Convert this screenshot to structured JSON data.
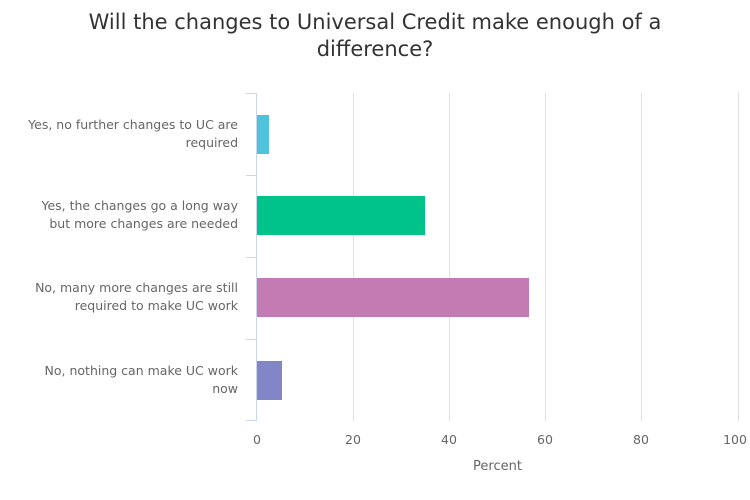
{
  "chart_data": {
    "type": "bar",
    "orientation": "horizontal",
    "title": "Will the changes to Universal Credit make enough of a difference?",
    "title_lines": [
      "Will the changes to Universal Credit make enough of a",
      "difference?"
    ],
    "categories": [
      "Yes, no further changes to UC are required",
      "Yes, the changes go a long way but more changes are needed",
      "No, many more changes are still required to make UC work",
      "No, nothing can make UC work now"
    ],
    "category_lines": [
      [
        "Yes, no further changes to UC are",
        "required"
      ],
      [
        "Yes, the changes go a long way",
        "but more changes are needed"
      ],
      [
        "No, many more changes are still",
        "required to make UC work"
      ],
      [
        "No, nothing can make UC work",
        "now"
      ]
    ],
    "values": [
      2.5,
      35,
      56.5,
      5.2
    ],
    "colors": [
      "#4fc3dc",
      "#00c389",
      "#c37bb3",
      "#8386c6"
    ],
    "xlabel": "Percent",
    "ylabel": "",
    "xlim": [
      0,
      100
    ],
    "xticks": [
      "0",
      "20",
      "40",
      "60",
      "80",
      "100"
    ],
    "grid": true,
    "legend": null
  }
}
